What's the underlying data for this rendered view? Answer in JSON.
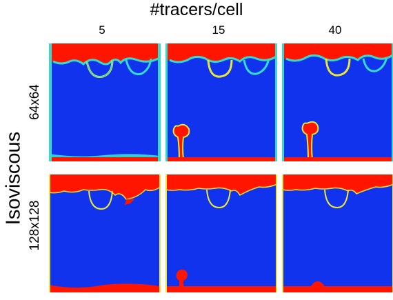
{
  "figure": {
    "title": "#tracers/cell",
    "side_title": "Isoviscous",
    "columns": [
      "5",
      "15",
      "40"
    ],
    "rows": [
      "64x64",
      "128x128"
    ]
  },
  "colors": {
    "background_blue": "#1133ee",
    "material_red": "#ff1500",
    "interface_cyan": "#33ddcc",
    "interface_yellow": "#e8e832"
  }
}
